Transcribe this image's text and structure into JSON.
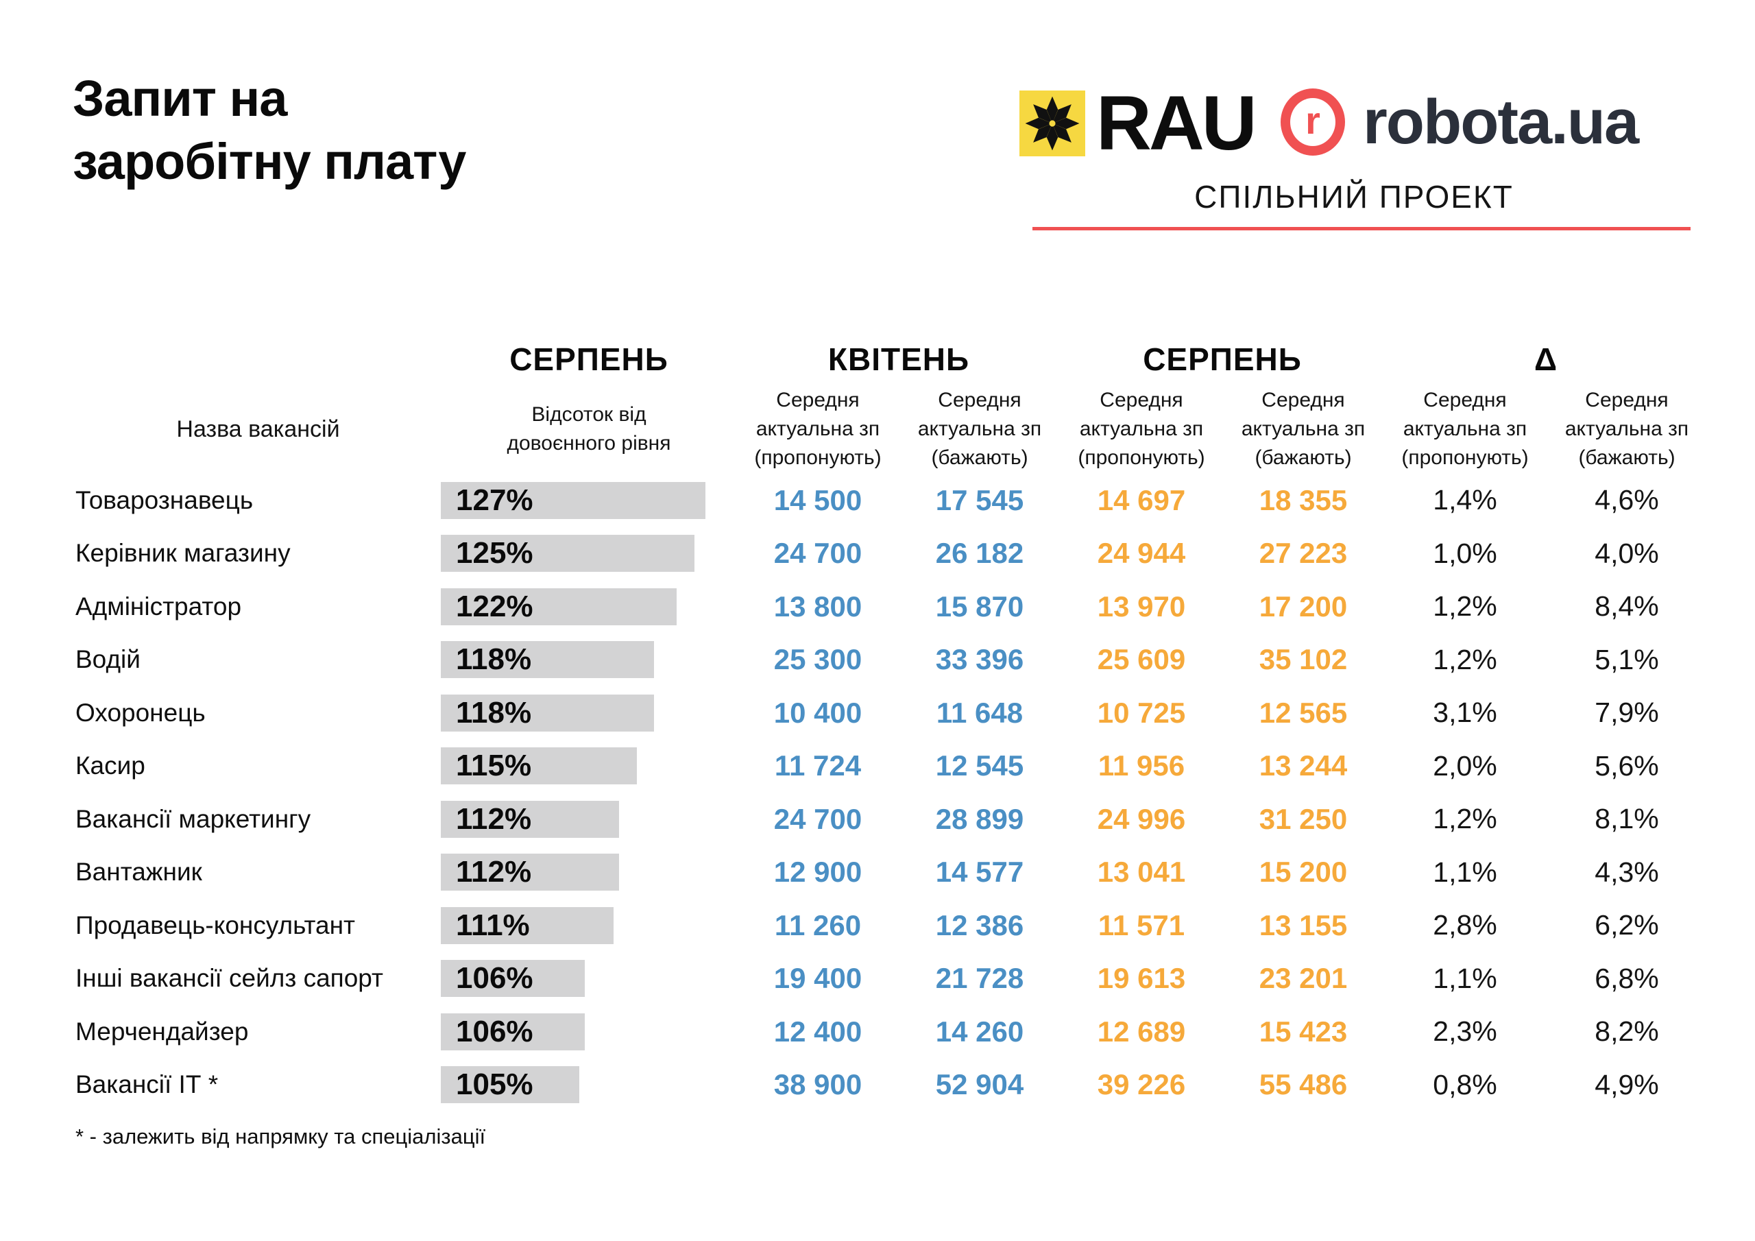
{
  "title": "Запит на\nзаробітну плату",
  "logos": {
    "rau_label": "RAU",
    "robota_r": "r",
    "robota_label": "robota.ua",
    "joint_project": "СПІЛЬНИЙ ПРОЕКТ"
  },
  "table": {
    "name_header": "Назва вакансій",
    "groups": [
      {
        "label": "СЕРПЕНЬ"
      },
      {
        "label": "КВІТЕНЬ"
      },
      {
        "label": "СЕРПЕНЬ"
      },
      {
        "label": "Δ"
      }
    ],
    "sub_headers": [
      "Відсоток від довоєнного рівня",
      "Середня актуальна зп (пропонують)",
      "Середня актуальна зп (бажають)",
      "Середня актуальна зп (пропонують)",
      "Середня актуальна зп (бажають)",
      "Середня актуальна зп (пропонують)",
      "Середня актуальна зп (бажають)"
    ]
  },
  "chart_data": {
    "type": "table",
    "title": "Запит на заробітну плату",
    "column_groups": [
      {
        "label": "СЕРПЕНЬ",
        "columns": [
          "Відсоток від довоєнного рівня"
        ]
      },
      {
        "label": "КВІТЕНЬ",
        "columns": [
          "Середня актуальна зп (пропонують)",
          "Середня актуальна зп (бажають)"
        ]
      },
      {
        "label": "СЕРПЕНЬ",
        "columns": [
          "Середня актуальна зп (пропонують)",
          "Середня актуальна зп (бажають)"
        ]
      },
      {
        "label": "Δ",
        "columns": [
          "Середня актуальна зп (пропонують)",
          "Середня актуальна зп (бажають)"
        ]
      }
    ],
    "rows": [
      {
        "name": "Товарознавець",
        "percent": 127,
        "percent_label": "127%",
        "values": [
          "14 500",
          "17 545",
          "14 697",
          "18 355",
          "1,4%",
          "4,6%"
        ]
      },
      {
        "name": "Керівник магазину",
        "percent": 125,
        "percent_label": "125%",
        "values": [
          "24 700",
          "26 182",
          "24 944",
          "27 223",
          "1,0%",
          "4,0%"
        ]
      },
      {
        "name": "Адміністратор",
        "percent": 122,
        "percent_label": "122%",
        "values": [
          "13 800",
          "15 870",
          "13 970",
          "17 200",
          "1,2%",
          "8,4%"
        ]
      },
      {
        "name": "Водій",
        "percent": 118,
        "percent_label": "118%",
        "values": [
          "25 300",
          "33 396",
          "25 609",
          "35 102",
          "1,2%",
          "5,1%"
        ]
      },
      {
        "name": "Охоронець",
        "percent": 118,
        "percent_label": "118%",
        "values": [
          "10 400",
          "11 648",
          "10 725",
          "12 565",
          "3,1%",
          "7,9%"
        ]
      },
      {
        "name": "Касир",
        "percent": 115,
        "percent_label": "115%",
        "values": [
          "11 724",
          "12 545",
          "11 956",
          "13 244",
          "2,0%",
          "5,6%"
        ]
      },
      {
        "name": "Вакансії маркетингу",
        "percent": 112,
        "percent_label": "112%",
        "values": [
          "24 700",
          "28 899",
          "24 996",
          "31 250",
          "1,2%",
          "8,1%"
        ]
      },
      {
        "name": "Вантажник",
        "percent": 112,
        "percent_label": "112%",
        "values": [
          "12 900",
          "14 577",
          "13 041",
          "15 200",
          "1,1%",
          "4,3%"
        ]
      },
      {
        "name": "Продавець-консультант",
        "percent": 111,
        "percent_label": "111%",
        "values": [
          "11 260",
          "12 386",
          "11 571",
          "13 155",
          "2,8%",
          "6,2%"
        ]
      },
      {
        "name": "Інші вакансії сейлз сапорт",
        "percent": 106,
        "percent_label": "106%",
        "values": [
          "19 400",
          "21 728",
          "19 613",
          "23 201",
          "1,1%",
          "6,8%"
        ]
      },
      {
        "name": "Мерчендайзер",
        "percent": 106,
        "percent_label": "106%",
        "values": [
          "12 400",
          "14 260",
          "12 689",
          "15 423",
          "2,3%",
          "8,2%"
        ]
      },
      {
        "name": "Вакансії ІТ *",
        "percent": 105,
        "percent_label": "105%",
        "values": [
          "38 900",
          "52 904",
          "39 226",
          "55 486",
          "0,8%",
          "4,9%"
        ]
      }
    ]
  },
  "footnote": "* - залежить від напрямку та спеціалізації",
  "colors": {
    "blue": "#4a8fc4",
    "orange": "#f6a93a",
    "gray_bar": "#d3d3d4",
    "yellow": "#f6d841",
    "red": "#f05152",
    "dark_logo_text": "#2b303b"
  }
}
